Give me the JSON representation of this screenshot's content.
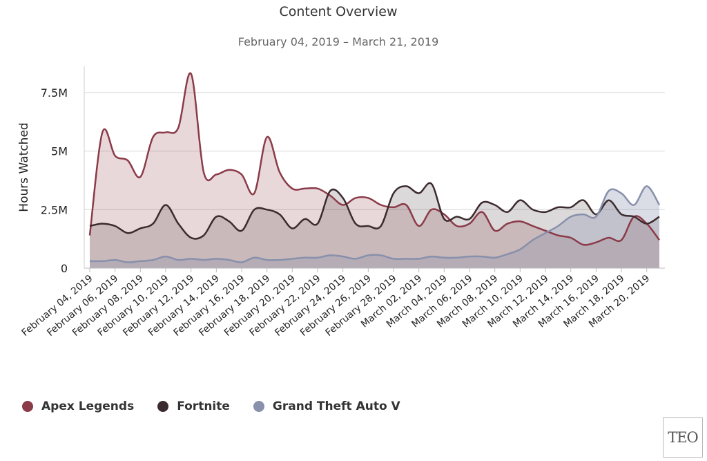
{
  "chart_data": {
    "type": "area",
    "title": "Content Overview",
    "subtitle": "February 04, 2019 – March 21, 2019",
    "ylabel": "Hours Watched",
    "xlabel": "",
    "ylim": [
      0,
      8500000
    ],
    "yticks": [
      {
        "value": 0,
        "label": "0"
      },
      {
        "value": 2500000,
        "label": "2.5M"
      },
      {
        "value": 5000000,
        "label": "5M"
      },
      {
        "value": 7500000,
        "label": "7.5M"
      }
    ],
    "grid": true,
    "legend_position": "bottom-left",
    "xticks": [
      "February 04, 2019",
      "February 06, 2019",
      "February 08, 2019",
      "February 10, 2019",
      "February 12, 2019",
      "February 14, 2019",
      "February 16, 2019",
      "February 18, 2019",
      "February 20, 2019",
      "February 22, 2019",
      "February 24, 2019",
      "February 26, 2019",
      "February 28, 2019",
      "March 02, 2019",
      "March 04, 2019",
      "March 06, 2019",
      "March 08, 2019",
      "March 10, 2019",
      "March 12, 2019",
      "March 14, 2019",
      "March 16, 2019",
      "March 18, 2019",
      "March 20, 2019"
    ],
    "x": [
      "2019-02-04",
      "2019-02-05",
      "2019-02-06",
      "2019-02-07",
      "2019-02-08",
      "2019-02-09",
      "2019-02-10",
      "2019-02-11",
      "2019-02-12",
      "2019-02-13",
      "2019-02-14",
      "2019-02-15",
      "2019-02-16",
      "2019-02-17",
      "2019-02-18",
      "2019-02-19",
      "2019-02-20",
      "2019-02-21",
      "2019-02-22",
      "2019-02-23",
      "2019-02-24",
      "2019-02-25",
      "2019-02-26",
      "2019-02-27",
      "2019-02-28",
      "2019-03-01",
      "2019-03-02",
      "2019-03-03",
      "2019-03-04",
      "2019-03-05",
      "2019-03-06",
      "2019-03-07",
      "2019-03-08",
      "2019-03-09",
      "2019-03-10",
      "2019-03-11",
      "2019-03-12",
      "2019-03-13",
      "2019-03-14",
      "2019-03-15",
      "2019-03-16",
      "2019-03-17",
      "2019-03-18",
      "2019-03-19",
      "2019-03-20",
      "2019-03-21"
    ],
    "series": [
      {
        "name": "Apex Legends",
        "color": "#8b3a48",
        "fill": "rgba(139,58,72,0.20)",
        "values": [
          1400000,
          5800000,
          4800000,
          4600000,
          3900000,
          5600000,
          5800000,
          6000000,
          8300000,
          4100000,
          4000000,
          4200000,
          4000000,
          3200000,
          5600000,
          4100000,
          3400000,
          3400000,
          3400000,
          3100000,
          2700000,
          3000000,
          3000000,
          2700000,
          2600000,
          2700000,
          1800000,
          2500000,
          2300000,
          1800000,
          1900000,
          2400000,
          1600000,
          1900000,
          2000000,
          1800000,
          1600000,
          1400000,
          1300000,
          1000000,
          1100000,
          1300000,
          1200000,
          2200000,
          1900000,
          1200000
        ]
      },
      {
        "name": "Fortnite",
        "color": "#3b2b2e",
        "fill": "rgba(60,45,48,0.18)",
        "values": [
          1800000,
          1900000,
          1800000,
          1500000,
          1700000,
          1900000,
          2700000,
          1900000,
          1300000,
          1400000,
          2200000,
          2000000,
          1600000,
          2500000,
          2500000,
          2300000,
          1700000,
          2100000,
          1900000,
          3300000,
          3000000,
          1900000,
          1800000,
          1800000,
          3200000,
          3500000,
          3200000,
          3600000,
          2100000,
          2200000,
          2100000,
          2800000,
          2700000,
          2400000,
          2900000,
          2500000,
          2400000,
          2600000,
          2600000,
          2900000,
          2300000,
          2900000,
          2300000,
          2200000,
          1900000,
          2200000
        ]
      },
      {
        "name": "Grand Theft Auto V",
        "color": "#8890ab",
        "fill": "rgba(136,144,171,0.30)",
        "values": [
          300000,
          300000,
          350000,
          250000,
          300000,
          350000,
          500000,
          350000,
          400000,
          350000,
          400000,
          350000,
          250000,
          450000,
          350000,
          350000,
          400000,
          450000,
          450000,
          550000,
          500000,
          400000,
          550000,
          550000,
          400000,
          400000,
          400000,
          500000,
          450000,
          450000,
          500000,
          500000,
          450000,
          600000,
          800000,
          1200000,
          1500000,
          1800000,
          2200000,
          2300000,
          2200000,
          3300000,
          3200000,
          2700000,
          3500000,
          2700000
        ]
      }
    ]
  },
  "logo": {
    "text": "TEO"
  }
}
